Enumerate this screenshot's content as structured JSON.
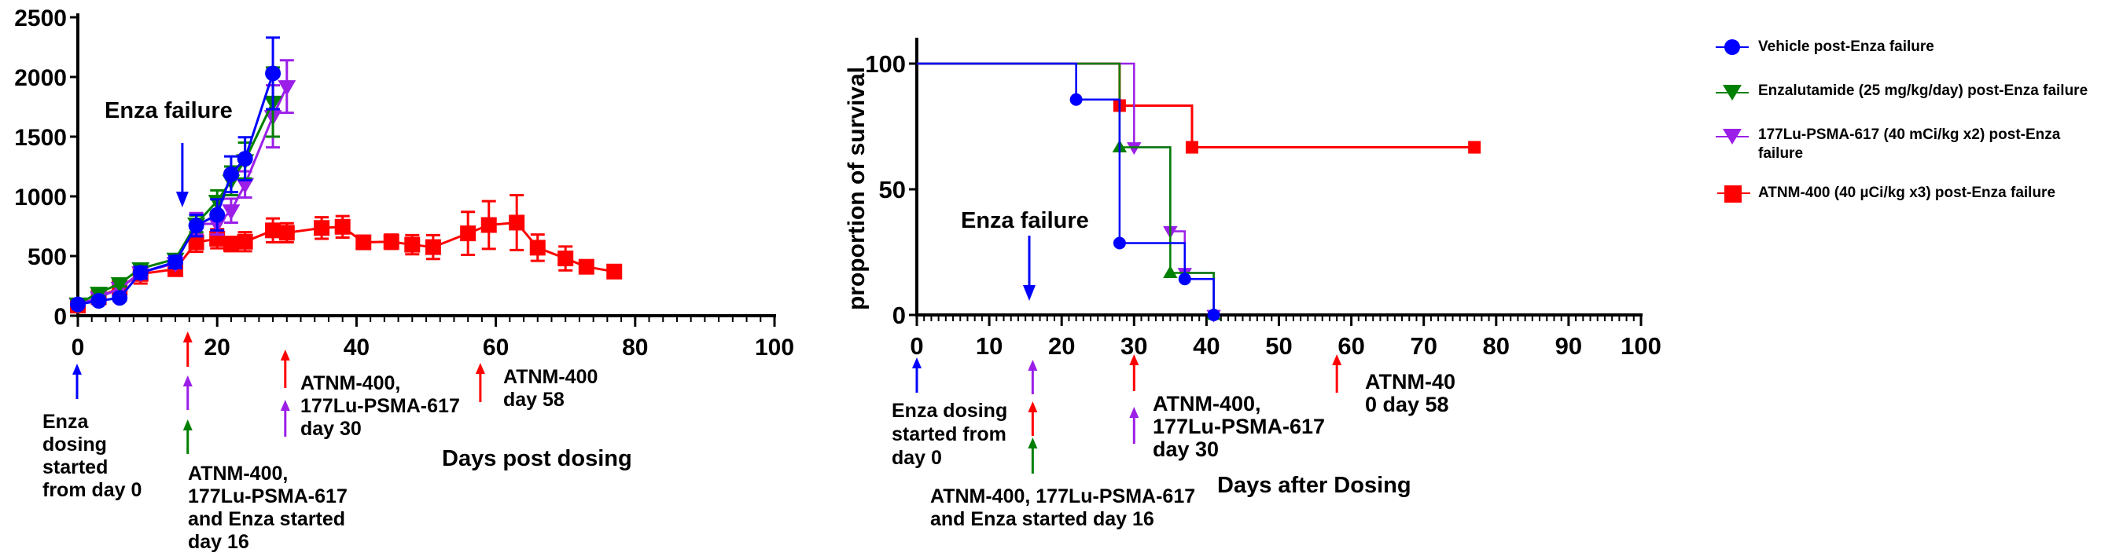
{
  "colors": {
    "vehicle": "#0000ff",
    "enzalutamide": "#008000",
    "lu177": "#9b1fe8",
    "atnm400": "#ff0000",
    "axis": "#000000"
  },
  "legend": [
    {
      "series": "vehicle",
      "marker": "circle",
      "label": "Vehicle post-Enza failure"
    },
    {
      "series": "enzalutamide",
      "marker": "triangle-down",
      "label": "Enzalutamide (25 mg/kg/day) post-Enza failure"
    },
    {
      "series": "lu177",
      "marker": "triangle-down",
      "label": "177Lu-PSMA-617 (40 mCi/kg x2) post-Enza failure"
    },
    {
      "series": "atnm400",
      "marker": "square",
      "label": "ATNM-400 (40 µCi/kg x3) post-Enza failure"
    }
  ],
  "chart_data": [
    {
      "type": "line",
      "title": "",
      "xlabel": "Days post dosing",
      "ylabel": "",
      "xlim": [
        0,
        100
      ],
      "ylim": [
        0,
        2500
      ],
      "xticks": [
        0,
        20,
        40,
        60,
        80,
        100
      ],
      "yticks": [
        0,
        500,
        1000,
        1500,
        2000,
        2500
      ],
      "x_minor_step": 2,
      "grid": false,
      "error_bars": true,
      "series": [
        {
          "name": "Vehicle post-Enza failure",
          "key": "vehicle",
          "marker": "circle",
          "points": [
            [
              0,
              95,
              20
            ],
            [
              3,
              125,
              25
            ],
            [
              6,
              150,
              25
            ],
            [
              9,
              360,
              50
            ],
            [
              14,
              450,
              50
            ],
            [
              17,
              755,
              90
            ],
            [
              20,
              845,
              130
            ],
            [
              22,
              1185,
              150
            ],
            [
              24,
              1315,
              180
            ],
            [
              28,
              2030,
              300
            ]
          ]
        },
        {
          "name": "Enzalutamide (25 mg/kg/day) post-Enza failure",
          "key": "enzalutamide",
          "marker": "triangle-down",
          "points": [
            [
              0,
              100,
              20
            ],
            [
              3,
              190,
              25
            ],
            [
              6,
              270,
              25
            ],
            [
              9,
              395,
              40
            ],
            [
              14,
              475,
              40
            ],
            [
              17,
              770,
              70
            ],
            [
              20,
              960,
              90
            ],
            [
              22,
              1130,
              120
            ],
            [
              24,
              1300,
              150
            ],
            [
              28,
              1790,
              290
            ]
          ]
        },
        {
          "name": "177Lu-PSMA-617 (40 mCi/kg x2) post-Enza failure",
          "key": "lu177",
          "marker": "triangle-down",
          "points": [
            [
              0,
              95,
              20
            ],
            [
              3,
              150,
              25
            ],
            [
              6,
              230,
              25
            ],
            [
              9,
              360,
              40
            ],
            [
              14,
              440,
              40
            ],
            [
              17,
              770,
              90
            ],
            [
              20,
              770,
              90
            ],
            [
              22,
              880,
              100
            ],
            [
              24,
              1100,
              110
            ],
            [
              28,
              1670,
              260
            ],
            [
              30,
              1920,
              220
            ]
          ]
        },
        {
          "name": "ATNM-400 (40 µCi/kg x3) post-Enza failure",
          "key": "atnm400",
          "marker": "square",
          "points": [
            [
              0,
              85,
              25
            ],
            [
              3,
              155,
              30
            ],
            [
              6,
              235,
              35
            ],
            [
              9,
              350,
              80
            ],
            [
              14,
              390,
              50
            ],
            [
              17,
              615,
              80
            ],
            [
              20,
              645,
              80
            ],
            [
              22,
              600,
              60
            ],
            [
              24,
              620,
              80
            ],
            [
              28,
              715,
              100
            ],
            [
              30,
              695,
              80
            ],
            [
              35,
              735,
              90
            ],
            [
              38,
              745,
              90
            ],
            [
              41,
              615,
              40
            ],
            [
              45,
              620,
              60
            ],
            [
              48,
              595,
              80
            ],
            [
              51,
              575,
              100
            ],
            [
              56,
              690,
              180
            ],
            [
              59,
              760,
              200
            ],
            [
              63,
              780,
              230
            ],
            [
              66,
              570,
              110
            ],
            [
              70,
              480,
              100
            ],
            [
              73,
              410,
              30
            ],
            [
              77,
              370,
              30
            ]
          ]
        }
      ],
      "annotations_inside": [
        {
          "text": "Enza failure",
          "arrow_day": 15,
          "arrow_color": "vehicle"
        }
      ],
      "annotations_below": [
        {
          "day": 0,
          "arrows": [
            "vehicle"
          ],
          "text": [
            "Enza",
            "dosing",
            "started",
            "from day 0"
          ]
        },
        {
          "day": 16,
          "arrows": [
            "atnm400",
            "lu177",
            "enzalutamide"
          ],
          "text": [
            "ATNM-400,",
            "177Lu-PSMA-617",
            "and Enza  started",
            "day 16"
          ]
        },
        {
          "day": 30,
          "arrows": [
            "atnm400",
            "lu177"
          ],
          "text": [
            "ATNM-400,",
            "177Lu-PSMA-617",
            "day 30"
          ]
        },
        {
          "day": 58,
          "arrows": [
            "atnm400"
          ],
          "text": [
            "ATNM-400",
            "day 58"
          ]
        }
      ]
    },
    {
      "type": "line",
      "subtype": "kaplan-meier",
      "title": "",
      "xlabel": "Days after Dosing",
      "ylabel": "proportion of survival",
      "xlim": [
        0,
        100
      ],
      "ylim": [
        0,
        100
      ],
      "xticks": [
        0,
        10,
        20,
        30,
        40,
        50,
        60,
        70,
        80,
        90,
        100
      ],
      "yticks": [
        0,
        50,
        100
      ],
      "x_minor_step": 1,
      "grid": false,
      "series": [
        {
          "name": "Vehicle post-Enza failure",
          "key": "vehicle",
          "marker": "circle",
          "steps": [
            [
              0,
              100
            ],
            [
              22,
              85.7
            ],
            [
              28,
              28.6
            ],
            [
              37,
              14.3
            ],
            [
              41,
              0
            ]
          ]
        },
        {
          "name": "Enzalutamide (25 mg/kg/day) post-Enza failure",
          "key": "enzalutamide",
          "marker": "triangle-up",
          "steps": [
            [
              0,
              100
            ],
            [
              28,
              66.7
            ],
            [
              35,
              16.7
            ],
            [
              41,
              0
            ]
          ]
        },
        {
          "name": "177Lu-PSMA-617 (40 mCi/kg x2) post-Enza failure",
          "key": "lu177",
          "marker": "triangle-down",
          "steps": [
            [
              0,
              100
            ],
            [
              30,
              66.7
            ],
            [
              35,
              33.3
            ],
            [
              37,
              16.7
            ],
            [
              41,
              0
            ]
          ]
        },
        {
          "name": "ATNM-400 (40 µCi/kg x3) post-Enza failure",
          "key": "atnm400",
          "marker": "square",
          "steps": [
            [
              0,
              100
            ],
            [
              28,
              83.3
            ],
            [
              38,
              66.7
            ]
          ],
          "end_day": 77
        }
      ],
      "annotations_inside": [
        {
          "text": "Enza failure",
          "arrow_day": 16,
          "arrow_color": "vehicle"
        }
      ],
      "annotations_below": [
        {
          "day": 0,
          "arrows": [
            "vehicle"
          ],
          "text": [
            "Enza dosing",
            "started from",
            "day 0"
          ]
        },
        {
          "day": 16,
          "arrows": [
            "lu177",
            "atnm400",
            "enzalutamide"
          ],
          "text": [
            "ATNM-400, 177Lu-PSMA-617",
            "and Enza  started day 16"
          ]
        },
        {
          "day": 30,
          "arrows": [
            "atnm400",
            "lu177"
          ],
          "text": [
            "ATNM-400,",
            "177Lu-PSMA-617",
            "day 30"
          ]
        },
        {
          "day": 58,
          "arrows": [
            "atnm400"
          ],
          "text": [
            "ATNM-40",
            "0 day 58"
          ]
        }
      ]
    }
  ]
}
